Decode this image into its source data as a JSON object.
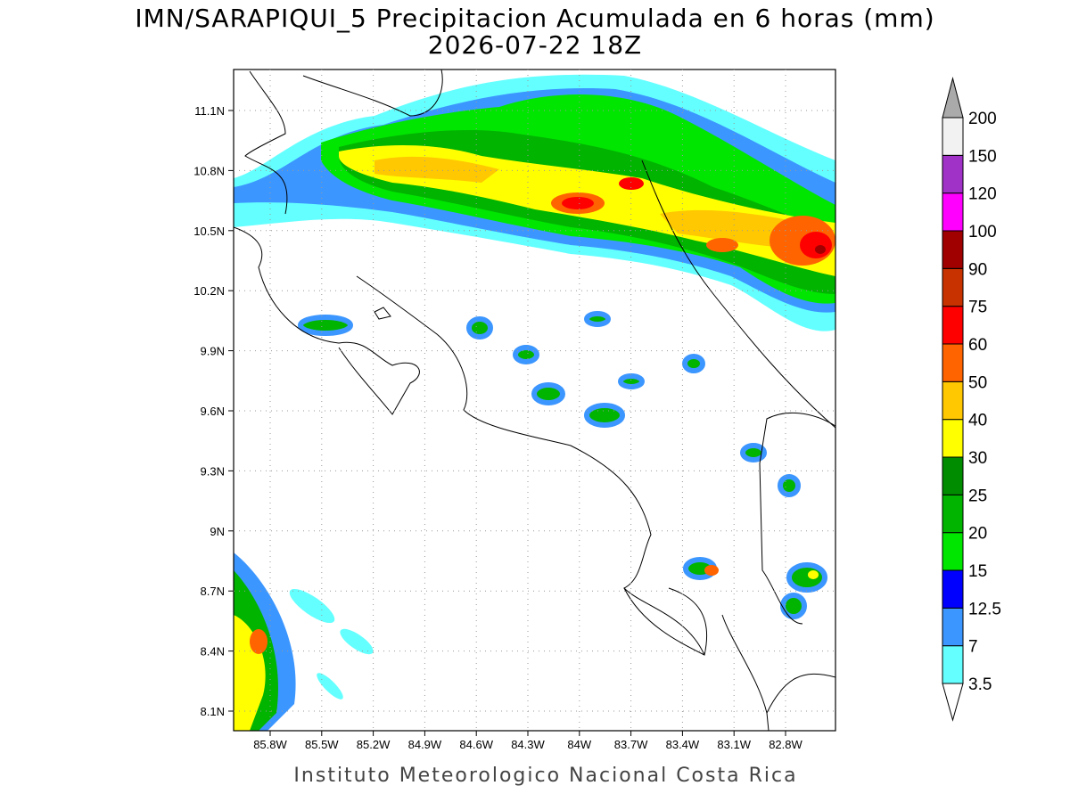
{
  "title": "IMN/SARAPIQUI_5 Precipitacion Acumulada en 6 horas (mm)",
  "subtitle": "2026-07-22 18Z",
  "footer": "Instituto Meteorologico Nacional Costa Rica",
  "map": {
    "lat_labels": [
      "11.1N",
      "10.8N",
      "10.5N",
      "10.2N",
      "9.9N",
      "9.6N",
      "9.3N",
      "9N",
      "8.7N",
      "8.4N",
      "8.1N"
    ],
    "lon_labels": [
      "85.8W",
      "85.5W",
      "85.2W",
      "84.9W",
      "84.6W",
      "84.3W",
      "84W",
      "83.7W",
      "83.4W",
      "83.1W",
      "82.8W"
    ],
    "grid": true
  },
  "colorbar": {
    "levels": [
      3.5,
      7,
      12.5,
      15,
      20,
      25,
      30,
      40,
      50,
      60,
      75,
      90,
      100,
      120,
      150,
      200
    ],
    "colors": [
      "#ffffff",
      "#64ffff",
      "#3c96ff",
      "#0000ff",
      "#00e600",
      "#00b400",
      "#008c00",
      "#ffff00",
      "#ffc800",
      "#ff6400",
      "#ff0000",
      "#c83200",
      "#a00000",
      "#ff00ff",
      "#a032c8",
      "#f2f2f2",
      "#aaaaaa"
    ]
  }
}
